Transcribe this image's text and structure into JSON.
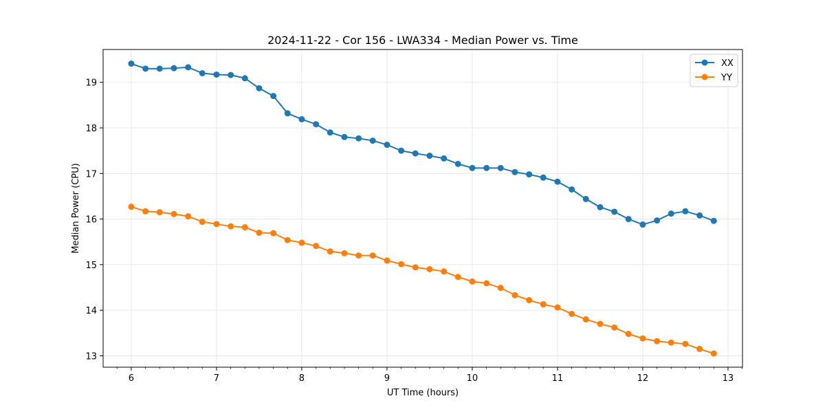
{
  "chart_data": {
    "type": "line",
    "title": "2024-11-22 - Cor 156 - LWA334 - Median Power vs. Time",
    "xlabel": "UT Time (hours)",
    "ylabel": "Median Power (CPU)",
    "xlim": [
      5.67,
      13.17
    ],
    "ylim": [
      12.75,
      19.72
    ],
    "xticks": [
      6,
      7,
      8,
      9,
      10,
      11,
      12,
      13
    ],
    "yticks": [
      13,
      14,
      15,
      16,
      17,
      18,
      19
    ],
    "grid": true,
    "legend_position": "top-right",
    "x": [
      6.0,
      6.167,
      6.333,
      6.5,
      6.667,
      6.833,
      7.0,
      7.167,
      7.333,
      7.5,
      7.667,
      7.833,
      8.0,
      8.167,
      8.333,
      8.5,
      8.667,
      8.833,
      9.0,
      9.167,
      9.333,
      9.5,
      9.667,
      9.833,
      10.0,
      10.167,
      10.333,
      10.5,
      10.667,
      10.833,
      11.0,
      11.167,
      11.333,
      11.5,
      11.667,
      11.833,
      12.0,
      12.167,
      12.333,
      12.5,
      12.667,
      12.833
    ],
    "series": [
      {
        "name": "XX",
        "color": "#1f77b4",
        "values": [
          19.41,
          19.3,
          19.3,
          19.31,
          19.33,
          19.2,
          19.17,
          19.16,
          19.09,
          18.87,
          18.7,
          18.32,
          18.19,
          18.08,
          17.9,
          17.8,
          17.77,
          17.72,
          17.63,
          17.5,
          17.44,
          17.39,
          17.33,
          17.21,
          17.12,
          17.12,
          17.12,
          17.03,
          16.98,
          16.91,
          16.82,
          16.65,
          16.44,
          16.26,
          16.16,
          16.0,
          15.88,
          15.97,
          16.12,
          16.17,
          16.08,
          15.96
        ]
      },
      {
        "name": "YY",
        "color": "#ff7f0e",
        "values": [
          16.27,
          16.17,
          16.15,
          16.11,
          16.06,
          15.94,
          15.89,
          15.84,
          15.82,
          15.7,
          15.69,
          15.54,
          15.48,
          15.41,
          15.29,
          15.25,
          15.2,
          15.2,
          15.09,
          15.01,
          14.94,
          14.9,
          14.85,
          14.73,
          14.63,
          14.59,
          14.49,
          14.33,
          14.22,
          14.13,
          14.06,
          13.92,
          13.8,
          13.7,
          13.62,
          13.48,
          13.38,
          13.32,
          13.29,
          13.26,
          13.15,
          13.05
        ]
      }
    ]
  }
}
